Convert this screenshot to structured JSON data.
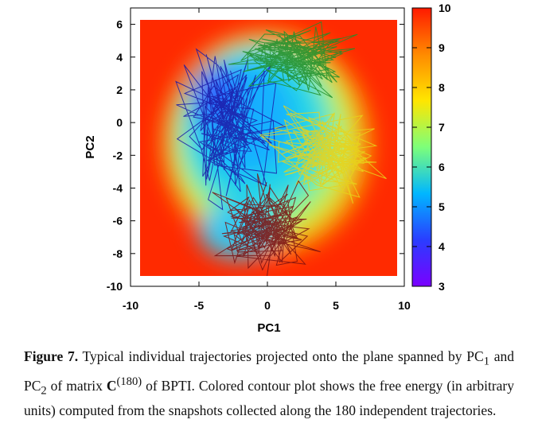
{
  "chart_data": {
    "type": "heatmap",
    "xlabel": "PC1",
    "ylabel": "PC2",
    "xlim": [
      -10,
      10
    ],
    "ylim": [
      -10,
      7
    ],
    "x_ticks": [
      "-10",
      "-5",
      "0",
      "5",
      "10"
    ],
    "y_ticks": [
      "6",
      "4",
      "2",
      "0",
      "-2",
      "-4",
      "-6",
      "-8",
      "-10"
    ],
    "colorbar": {
      "range": [
        3,
        10
      ],
      "ticks": [
        "10",
        "9",
        "8",
        "7",
        "6",
        "5",
        "4",
        "3"
      ],
      "colors": [
        "#7a00ff",
        "#2a3dff",
        "#00b7ff",
        "#7dff7a",
        "#ffe600",
        "#ff8a00",
        "#ff1a00"
      ]
    },
    "trajectories": [
      {
        "color": "#1a1aa8",
        "center": [
          -3,
          0
        ],
        "spread": [
          3,
          3.5
        ]
      },
      {
        "color": "#1f8f2a",
        "center": [
          2,
          4
        ],
        "spread": [
          3.5,
          1.8
        ]
      },
      {
        "color": "#e8d21a",
        "center": [
          4,
          -2
        ],
        "spread": [
          3.5,
          2.2
        ]
      },
      {
        "color": "#7a0f0f",
        "center": [
          0,
          -6.5
        ],
        "spread": [
          3,
          2.5
        ]
      }
    ]
  },
  "caption": {
    "label": "Figure 7.",
    "text_1": " Typical individual trajectories projected onto the plane spanned by PC",
    "sub_1": "1",
    "text_2": " and PC",
    "sub_2": "2",
    "text_3": " of matrix ",
    "matrix": "C",
    "sup": "(180)",
    "text_4": " of BPTI. Colored contour plot shows the free energy (in arbitrary units) computed from the snapshots collected along the 180 independent trajectories."
  }
}
